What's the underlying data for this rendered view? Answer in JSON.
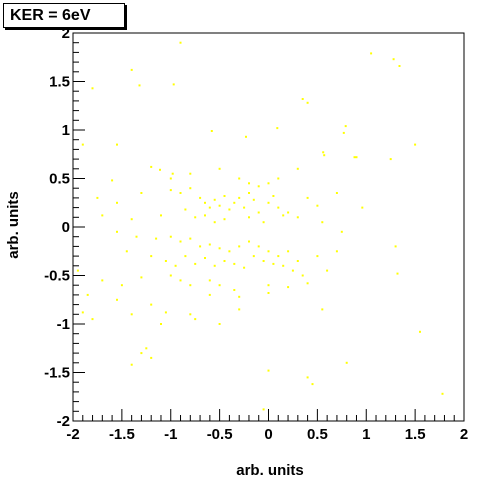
{
  "chart_data": {
    "type": "scatter",
    "title": "KER = 6eV",
    "xlabel": "arb. units",
    "ylabel": "arb. units",
    "xlim": [
      -2,
      2
    ],
    "ylim": [
      -2,
      2
    ],
    "x_ticks": [
      "-2",
      "-1.5",
      "-1",
      "-0.5",
      "0",
      "0.5",
      "1",
      "1.5",
      "2"
    ],
    "y_ticks": [
      "-2",
      "-1.5",
      "-1",
      "-0.5",
      "0",
      "0.5",
      "1",
      "1.5",
      "2"
    ],
    "grid": false,
    "legend": "none",
    "marker_color": "#ffff00",
    "points": [
      [
        -0.9,
        1.9
      ],
      [
        -1.4,
        1.62
      ],
      [
        -1.8,
        1.43
      ],
      [
        -1.32,
        1.46
      ],
      [
        -0.97,
        1.47
      ],
      [
        0.4,
        1.28
      ],
      [
        0.35,
        1.32
      ],
      [
        1.05,
        1.79
      ],
      [
        1.28,
        1.73
      ],
      [
        1.34,
        1.66
      ],
      [
        -0.58,
        0.99
      ],
      [
        -0.23,
        0.93
      ],
      [
        0.09,
        1.02
      ],
      [
        0.77,
        0.97
      ],
      [
        0.79,
        1.04
      ],
      [
        0.56,
        0.77
      ],
      [
        0.57,
        0.74
      ],
      [
        0.88,
        0.72
      ],
      [
        1.5,
        0.85
      ],
      [
        0.9,
        0.72
      ],
      [
        1.25,
        0.7
      ],
      [
        -1.55,
        0.85
      ],
      [
        -1.2,
        0.62
      ],
      [
        -1.11,
        0.59
      ],
      [
        -0.98,
        0.55
      ],
      [
        -1.6,
        0.48
      ],
      [
        -1.0,
        0.5
      ],
      [
        -0.8,
        0.55
      ],
      [
        -0.5,
        0.6
      ],
      [
        -0.3,
        0.5
      ],
      [
        -0.2,
        0.45
      ],
      [
        -0.1,
        0.42
      ],
      [
        0.0,
        0.45
      ],
      [
        0.1,
        0.5
      ],
      [
        0.3,
        0.6
      ],
      [
        -1.9,
        0.85
      ],
      [
        -1.75,
        0.3
      ],
      [
        -1.55,
        0.25
      ],
      [
        -1.3,
        0.35
      ],
      [
        -1.0,
        0.38
      ],
      [
        -0.9,
        0.35
      ],
      [
        -0.8,
        0.4
      ],
      [
        -0.7,
        0.3
      ],
      [
        -0.65,
        0.25
      ],
      [
        -0.6,
        0.2
      ],
      [
        -0.55,
        0.28
      ],
      [
        -0.5,
        0.22
      ],
      [
        -0.45,
        0.32
      ],
      [
        -0.4,
        0.18
      ],
      [
        -0.35,
        0.25
      ],
      [
        -0.3,
        0.3
      ],
      [
        -0.25,
        0.2
      ],
      [
        -0.2,
        0.35
      ],
      [
        -0.15,
        0.28
      ],
      [
        -0.1,
        0.15
      ],
      [
        0.0,
        0.25
      ],
      [
        0.05,
        0.32
      ],
      [
        0.1,
        0.2
      ],
      [
        0.2,
        0.15
      ],
      [
        0.3,
        0.1
      ],
      [
        0.4,
        0.3
      ],
      [
        0.5,
        0.22
      ],
      [
        0.7,
        0.35
      ],
      [
        0.96,
        0.2
      ],
      [
        -1.7,
        0.12
      ],
      [
        -1.4,
        0.08
      ],
      [
        -1.1,
        0.12
      ],
      [
        -0.85,
        0.18
      ],
      [
        -0.75,
        0.1
      ],
      [
        -0.65,
        0.12
      ],
      [
        -0.55,
        0.05
      ],
      [
        -0.45,
        0.08
      ],
      [
        -0.2,
        0.1
      ],
      [
        -0.05,
        0.05
      ],
      [
        0.15,
        0.12
      ],
      [
        0.55,
        0.05
      ],
      [
        0.75,
        -0.05
      ],
      [
        -1.55,
        -0.05
      ],
      [
        -1.35,
        -0.1
      ],
      [
        -1.15,
        -0.12
      ],
      [
        -1.0,
        -0.1
      ],
      [
        -0.9,
        -0.15
      ],
      [
        -0.8,
        -0.12
      ],
      [
        -0.7,
        -0.2
      ],
      [
        -0.6,
        -0.18
      ],
      [
        -0.5,
        -0.22
      ],
      [
        -0.4,
        -0.25
      ],
      [
        -0.3,
        -0.2
      ],
      [
        -0.2,
        -0.15
      ],
      [
        -0.1,
        -0.2
      ],
      [
        0.0,
        -0.25
      ],
      [
        0.1,
        -0.3
      ],
      [
        0.2,
        -0.25
      ],
      [
        0.3,
        -0.35
      ],
      [
        0.5,
        -0.3
      ],
      [
        0.7,
        -0.25
      ],
      [
        1.3,
        -0.2
      ],
      [
        -1.45,
        -0.25
      ],
      [
        -1.2,
        -0.3
      ],
      [
        -1.05,
        -0.35
      ],
      [
        -0.95,
        -0.4
      ],
      [
        -0.85,
        -0.3
      ],
      [
        -0.75,
        -0.38
      ],
      [
        -0.65,
        -0.32
      ],
      [
        -0.55,
        -0.4
      ],
      [
        -0.45,
        -0.35
      ],
      [
        -0.35,
        -0.38
      ],
      [
        -0.25,
        -0.42
      ],
      [
        -0.15,
        -0.3
      ],
      [
        -0.05,
        -0.35
      ],
      [
        0.05,
        -0.38
      ],
      [
        0.15,
        -0.4
      ],
      [
        0.25,
        -0.45
      ],
      [
        0.35,
        -0.5
      ],
      [
        0.6,
        -0.45
      ],
      [
        1.32,
        -0.48
      ],
      [
        -1.95,
        -0.45
      ],
      [
        -1.7,
        -0.55
      ],
      [
        -1.5,
        -0.6
      ],
      [
        -1.3,
        -0.52
      ],
      [
        -1.0,
        -0.5
      ],
      [
        -0.9,
        -0.55
      ],
      [
        -0.8,
        -0.6
      ],
      [
        -0.6,
        -0.55
      ],
      [
        -0.5,
        -0.6
      ],
      [
        -0.35,
        -0.65
      ],
      [
        0.0,
        -0.6
      ],
      [
        0.2,
        -0.62
      ],
      [
        0.4,
        -0.58
      ],
      [
        -1.85,
        -0.7
      ],
      [
        -1.55,
        -0.75
      ],
      [
        -1.2,
        -0.8
      ],
      [
        -0.6,
        -0.7
      ],
      [
        -0.3,
        -0.72
      ],
      [
        0.0,
        -0.68
      ],
      [
        -1.9,
        -0.88
      ],
      [
        -1.8,
        -0.95
      ],
      [
        -1.4,
        -0.9
      ],
      [
        -1.05,
        -0.88
      ],
      [
        -0.8,
        -0.9
      ],
      [
        -0.3,
        -0.85
      ],
      [
        0.55,
        -0.85
      ],
      [
        -1.1,
        -1.0
      ],
      [
        -0.75,
        -0.95
      ],
      [
        -1.25,
        -1.25
      ],
      [
        -1.3,
        -1.3
      ],
      [
        -1.2,
        -1.35
      ],
      [
        -1.4,
        -1.42
      ],
      [
        0.8,
        -1.4
      ],
      [
        1.55,
        -1.08
      ],
      [
        0.4,
        -1.55
      ],
      [
        0.45,
        -1.62
      ],
      [
        0.0,
        -1.48
      ],
      [
        -0.05,
        -1.88
      ],
      [
        1.78,
        -1.72
      ],
      [
        -0.5,
        -1.0
      ]
    ]
  }
}
